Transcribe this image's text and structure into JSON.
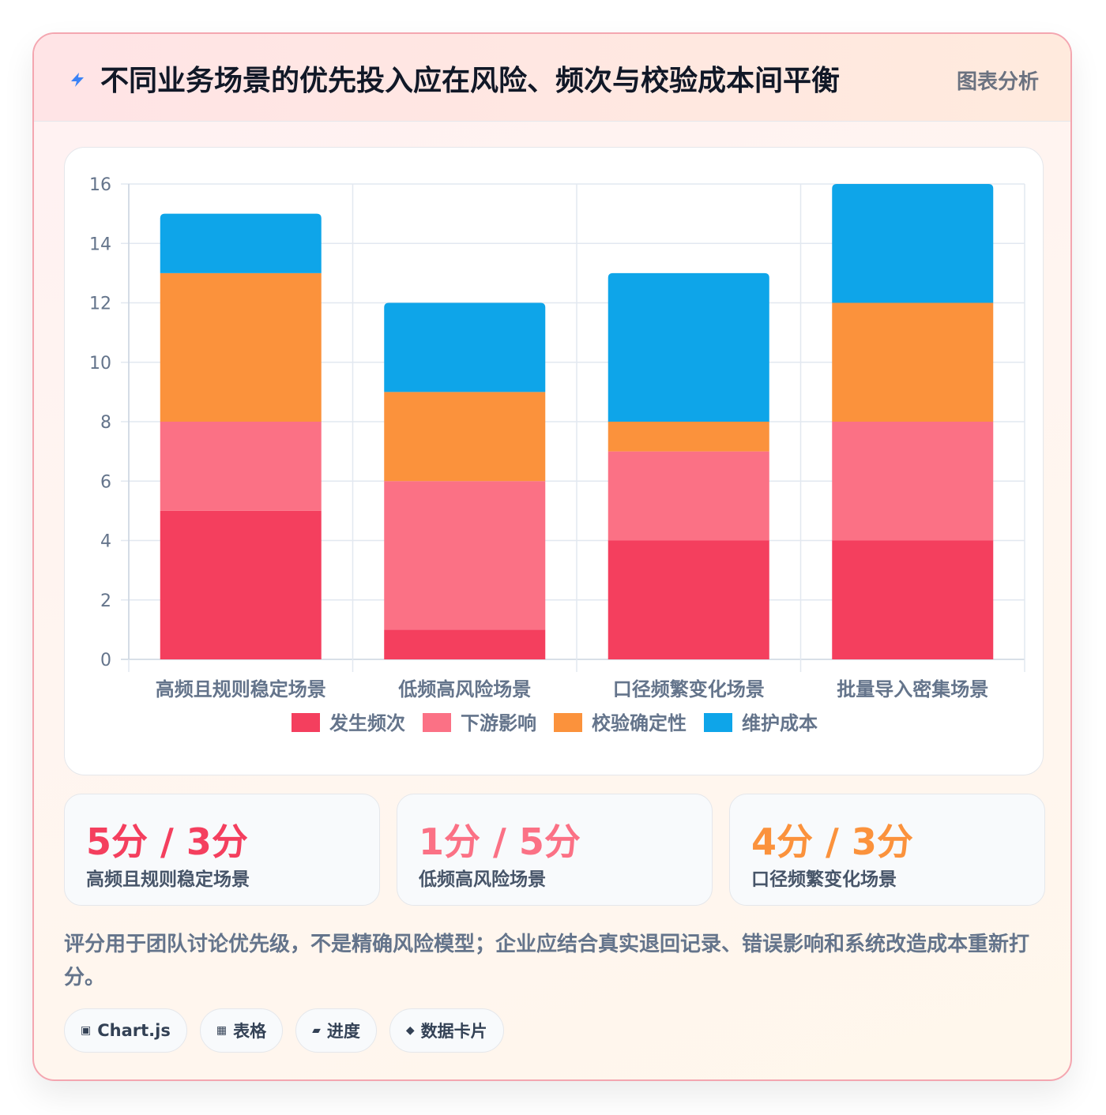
{
  "header": {
    "icon": "lightning-icon",
    "title": "不同业务场景的优先投入应在风险、频次与校验成本间平衡",
    "badge": "图表分析"
  },
  "chart_data": {
    "type": "bar",
    "stacked": true,
    "categories": [
      "高频且规则稳定场景",
      "低频高风险场景",
      "口径频繁变化场景",
      "批量导入密集场景"
    ],
    "series": [
      {
        "name": "发生频次",
        "color": "#f43f5e",
        "values": [
          5,
          1,
          4,
          4
        ]
      },
      {
        "name": "下游影响",
        "color": "#fb7185",
        "values": [
          3,
          5,
          3,
          4
        ]
      },
      {
        "name": "校验确定性",
        "color": "#fb923c",
        "values": [
          5,
          3,
          1,
          4
        ]
      },
      {
        "name": "维护成本",
        "color": "#0ea5e9",
        "values": [
          2,
          3,
          5,
          4
        ]
      }
    ],
    "ylim": [
      0,
      16
    ],
    "yticks": [
      0,
      2,
      4,
      6,
      8,
      10,
      12,
      14,
      16
    ],
    "grid": true,
    "legend": "bottom"
  },
  "stats": [
    {
      "value": "5分 / 3分",
      "label": "高频且规则稳定场景",
      "color": "#f43f5e"
    },
    {
      "value": "1分 / 5分",
      "label": "低频高风险场景",
      "color": "#fb7185"
    },
    {
      "value": "4分 / 3分",
      "label": "口径频繁变化场景",
      "color": "#fb923c"
    }
  ],
  "note": "评分用于团队讨论优先级，不是精确风险模型；企业应结合真实退回记录、错误影响和系统改造成本重新打分。",
  "tags": [
    {
      "icon": "chart-square-icon",
      "glyph": "▣",
      "label": "Chart.js"
    },
    {
      "icon": "table-icon",
      "glyph": "▦",
      "label": "表格"
    },
    {
      "icon": "progress-icon",
      "glyph": "▰",
      "label": "进度"
    },
    {
      "icon": "diamond-icon",
      "glyph": "◆",
      "label": "数据卡片"
    }
  ]
}
